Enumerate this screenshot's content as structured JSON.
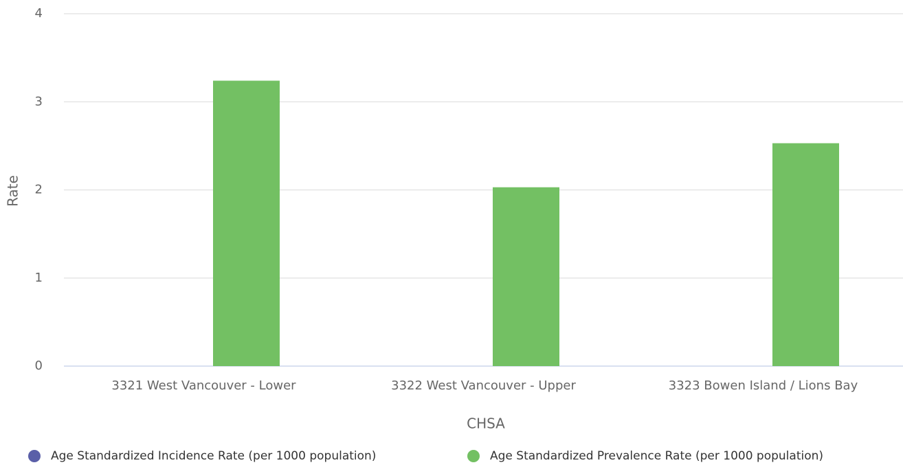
{
  "chart_data": {
    "type": "bar",
    "categories": [
      "3321 West Vancouver - Lower",
      "3322 West Vancouver - Upper",
      "3323 Bowen Island / Lions Bay"
    ],
    "series": [
      {
        "name": "Age Standardized Incidence Rate (per 1000 population)",
        "color": "#5a5fa8",
        "values": [
          0,
          0,
          0
        ]
      },
      {
        "name": "Age Standardized Prevalence Rate (per 1000 population)",
        "color": "#73c063",
        "values": [
          3.24,
          2.03,
          2.53
        ]
      }
    ],
    "x_label": "CHSA",
    "y_label": "Rate",
    "ylim": [
      0,
      4
    ],
    "yticks": [
      0,
      1,
      2,
      3,
      4
    ],
    "grid": true,
    "legend": "bottom"
  }
}
